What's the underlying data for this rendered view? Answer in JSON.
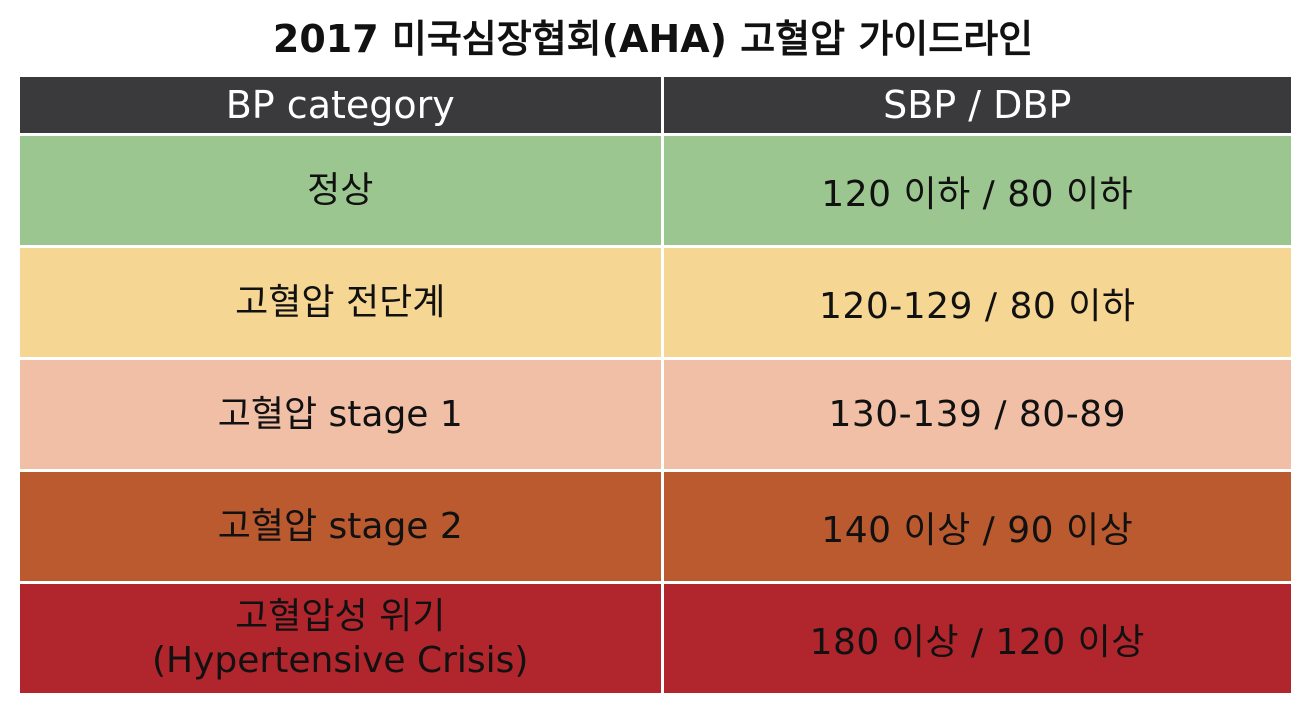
{
  "title": "2017 미국심장협회(AHA) 고혈압 가이드라인",
  "table": {
    "headers": [
      "BP category",
      "SBP / DBP"
    ],
    "rows": [
      {
        "category": [
          "정상"
        ],
        "value": "120 이하 / 80 이하",
        "color": "#9cc68f"
      },
      {
        "category": [
          "고혈압 전단계"
        ],
        "value": "120-129  / 80 이하",
        "color": "#f5d693"
      },
      {
        "category": [
          "고혈압 stage 1"
        ],
        "value": "130-139  / 80-89",
        "color": "#f1bfa6"
      },
      {
        "category": [
          "고혈압 stage 2"
        ],
        "value": "140 이상 / 90 이상",
        "color": "#bb5a2f"
      },
      {
        "category": [
          "고혈압성 위기",
          "(Hypertensive Crisis)"
        ],
        "value": "180 이상 / 120 이상",
        "color": "#b0262c"
      }
    ]
  },
  "colors": {
    "header_bg": "#3a3a3c",
    "header_text": "#ffffff",
    "body_text": "#111111"
  }
}
